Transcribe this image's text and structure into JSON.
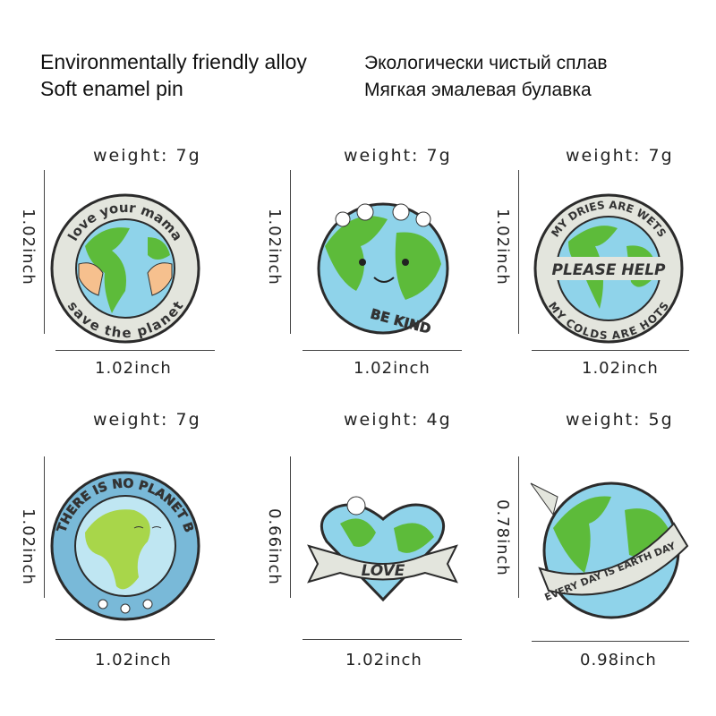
{
  "header": {
    "en_line1": "Environmentally friendly alloy",
    "en_line2": "Soft enamel pin",
    "ru_line1": "Экологически чистый сплав",
    "ru_line2": "Мягкая эмалевая булавка"
  },
  "pins": [
    {
      "weight": "weight:  7g",
      "height": "1.02inch",
      "width": "1.02inch",
      "text_top": "love your mama",
      "text_bottom": "save the planet"
    },
    {
      "weight": "weight:  7g",
      "height": "1.02inch",
      "width": "1.02inch",
      "text": "BE KIND"
    },
    {
      "weight": "weight:  7g",
      "height": "1.02inch",
      "width": "1.02inch",
      "text_top": "MY DRIES ARE WETS",
      "text_middle": "PLEASE HELP",
      "text_bottom": "MY COLDS ARE HOTS"
    },
    {
      "weight": "weight:  7g",
      "height": "1.02inch",
      "width": "1.02inch",
      "text": "THERE IS NO PLANET B"
    },
    {
      "weight": "weight:  4g",
      "height": "0.66inch",
      "width": "1.02inch",
      "text": "LOVE"
    },
    {
      "weight": "weight:  5g",
      "height": "0.78inch",
      "width": "0.98inch",
      "text": "EVERY DAY IS EARTH DAY"
    }
  ],
  "colors": {
    "ocean": "#8fd3ea",
    "land": "#5dbb3a",
    "rim": "#e3e5dd",
    "outline": "#2b2b2b",
    "blue_rim": "#79b9d8"
  }
}
